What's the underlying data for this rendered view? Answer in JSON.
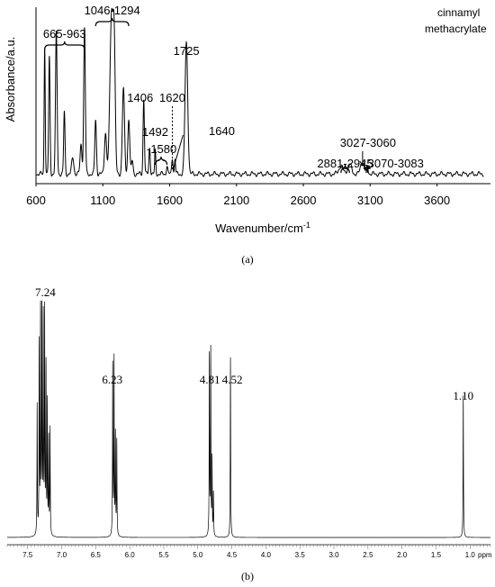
{
  "chart_data": [
    {
      "type": "line",
      "panel_label": "(a)",
      "compound_label": [
        "cinnamyl",
        "methacrylate"
      ],
      "ylabel": "Absorbance/a.u.",
      "xlabel_main": "Wavenumber/cm",
      "xlabel_sup": "-1",
      "xlim": [
        600,
        4000
      ],
      "x_ticks": [
        600,
        1100,
        1600,
        2100,
        2600,
        3100,
        3600
      ],
      "grid": false,
      "annotations": [
        {
          "text": "665-963",
          "x": 814
        },
        {
          "text": "1046-1294",
          "x": 1170
        },
        {
          "text": "1406",
          "x": 1406
        },
        {
          "text": "1620",
          "x": 1620
        },
        {
          "text": "1492",
          "x": 1492
        },
        {
          "text": "-1580",
          "x": 1540
        },
        {
          "text": "1725",
          "x": 1725
        },
        {
          "text": "1640",
          "x": 1640
        },
        {
          "text": "3027-3060",
          "x": 3043
        },
        {
          "text": "2881-2945",
          "x": 2913
        },
        {
          "text": "3070-3083",
          "x": 3076
        }
      ],
      "peaks": [
        {
          "x": 665,
          "y": 0.78,
          "w": 4
        },
        {
          "x": 700,
          "y": 0.71,
          "w": 5
        },
        {
          "x": 752,
          "y": 0.86,
          "w": 6
        },
        {
          "x": 812,
          "y": 0.38,
          "w": 5
        },
        {
          "x": 875,
          "y": 0.1,
          "w": 8
        },
        {
          "x": 937,
          "y": 0.18,
          "w": 7
        },
        {
          "x": 963,
          "y": 0.89,
          "w": 6
        },
        {
          "x": 1046,
          "y": 0.33,
          "w": 6
        },
        {
          "x": 1120,
          "y": 0.25,
          "w": 8
        },
        {
          "x": 1165,
          "y": 0.97,
          "w": 12
        },
        {
          "x": 1185,
          "y": 0.7,
          "w": 8
        },
        {
          "x": 1254,
          "y": 0.52,
          "w": 8
        },
        {
          "x": 1294,
          "y": 0.34,
          "w": 7
        },
        {
          "x": 1320,
          "y": 0.08,
          "w": 6
        },
        {
          "x": 1406,
          "y": 0.46,
          "w": 5
        },
        {
          "x": 1450,
          "y": 0.16,
          "w": 5
        },
        {
          "x": 1492,
          "y": 0.14,
          "w": 4
        },
        {
          "x": 1580,
          "y": 0.05,
          "w": 5
        },
        {
          "x": 1620,
          "y": 0.1,
          "w": 5
        },
        {
          "x": 1640,
          "y": 0.09,
          "w": 4
        },
        {
          "x": 1725,
          "y": 0.8,
          "w": 10
        },
        {
          "x": 2881,
          "y": 0.05,
          "w": 15
        },
        {
          "x": 2945,
          "y": 0.06,
          "w": 15
        },
        {
          "x": 3040,
          "y": 0.08,
          "w": 12
        },
        {
          "x": 3078,
          "y": 0.04,
          "w": 8
        }
      ]
    },
    {
      "type": "line",
      "panel_label": "(b)",
      "x_unit": "ppm",
      "xlim": [
        7.8,
        0.7
      ],
      "x_ticks": [
        "7.5",
        "7.0",
        "6.5",
        "6.0",
        "5.5",
        "5.0",
        "4.5",
        "4.0",
        "3.5",
        "3.0",
        "2.5",
        "2.0",
        "1.5",
        "1.0"
      ],
      "grid": false,
      "annotations": [
        {
          "text": "7.24",
          "x": 7.24
        },
        {
          "text": "6.23",
          "x": 6.23
        },
        {
          "text": "4.81",
          "x": 4.81
        },
        {
          "text": "4.52",
          "x": 4.52
        },
        {
          "text": "1.10",
          "x": 1.1
        }
      ],
      "peaks": [
        {
          "x": 7.36,
          "y": 0.55
        },
        {
          "x": 7.33,
          "y": 0.8
        },
        {
          "x": 7.31,
          "y": 0.95
        },
        {
          "x": 7.29,
          "y": 1.0
        },
        {
          "x": 7.27,
          "y": 0.9
        },
        {
          "x": 7.25,
          "y": 0.93
        },
        {
          "x": 7.23,
          "y": 0.7
        },
        {
          "x": 7.21,
          "y": 0.55
        },
        {
          "x": 7.19,
          "y": 0.4
        },
        {
          "x": 7.17,
          "y": 0.45
        },
        {
          "x": 6.25,
          "y": 0.72
        },
        {
          "x": 6.23,
          "y": 0.74
        },
        {
          "x": 6.21,
          "y": 0.42
        },
        {
          "x": 6.19,
          "y": 0.4
        },
        {
          "x": 4.83,
          "y": 0.76
        },
        {
          "x": 4.81,
          "y": 0.78
        },
        {
          "x": 4.79,
          "y": 0.32
        },
        {
          "x": 4.77,
          "y": 0.18
        },
        {
          "x": 4.52,
          "y": 0.76
        },
        {
          "x": 1.1,
          "y": 0.6
        }
      ]
    }
  ]
}
